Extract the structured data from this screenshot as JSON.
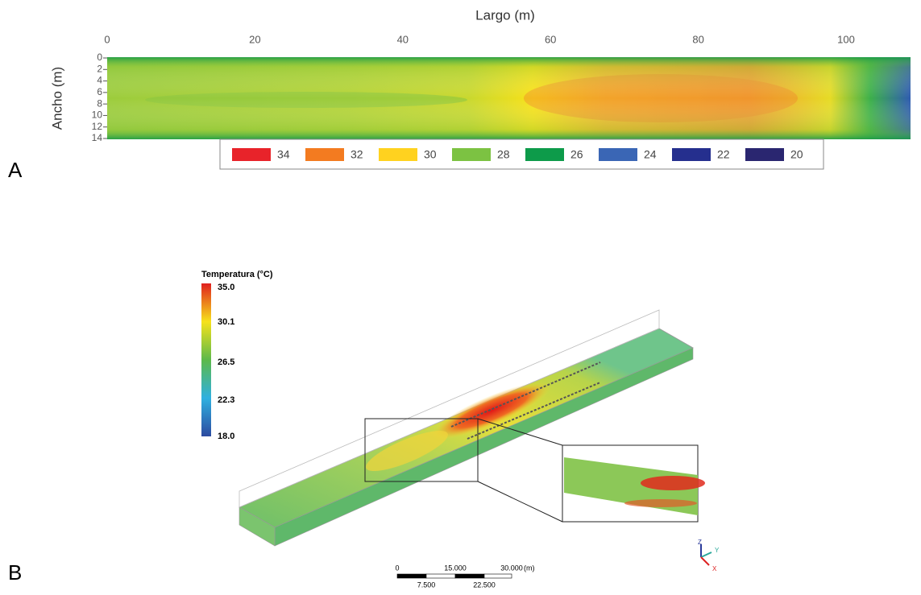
{
  "panel_a": {
    "label": "A",
    "x_axis_title": "Largo (m)",
    "y_axis_title": "Ancho (m)",
    "x_ticks": [
      0,
      20,
      40,
      60,
      80,
      100
    ],
    "y_ticks": [
      0,
      2,
      4,
      6,
      8,
      10,
      12,
      14
    ],
    "legend": [
      {
        "label": "34",
        "color": "#e8232a"
      },
      {
        "label": "32",
        "color": "#f37b20"
      },
      {
        "label": "30",
        "color": "#ffd21f"
      },
      {
        "label": "28",
        "color": "#7cc242"
      },
      {
        "label": "26",
        "color": "#0d9b4a"
      },
      {
        "label": "24",
        "color": "#3a66b5"
      },
      {
        "label": "22",
        "color": "#252f8e"
      },
      {
        "label": "20",
        "color": "#2a2670"
      }
    ]
  },
  "panel_b": {
    "label": "B",
    "colorbar_title": "Temperatura (°C)",
    "colorbar_ticks": [
      "35.0",
      "30.1",
      "26.5",
      "22.3",
      "18.0"
    ],
    "scale_bar": {
      "top_labels": [
        "0",
        "15.000",
        "30.000"
      ],
      "unit": "(m)",
      "bottom_labels": [
        "7.500",
        "22.500"
      ]
    },
    "axes": [
      "Z",
      "Y",
      "X"
    ]
  }
}
